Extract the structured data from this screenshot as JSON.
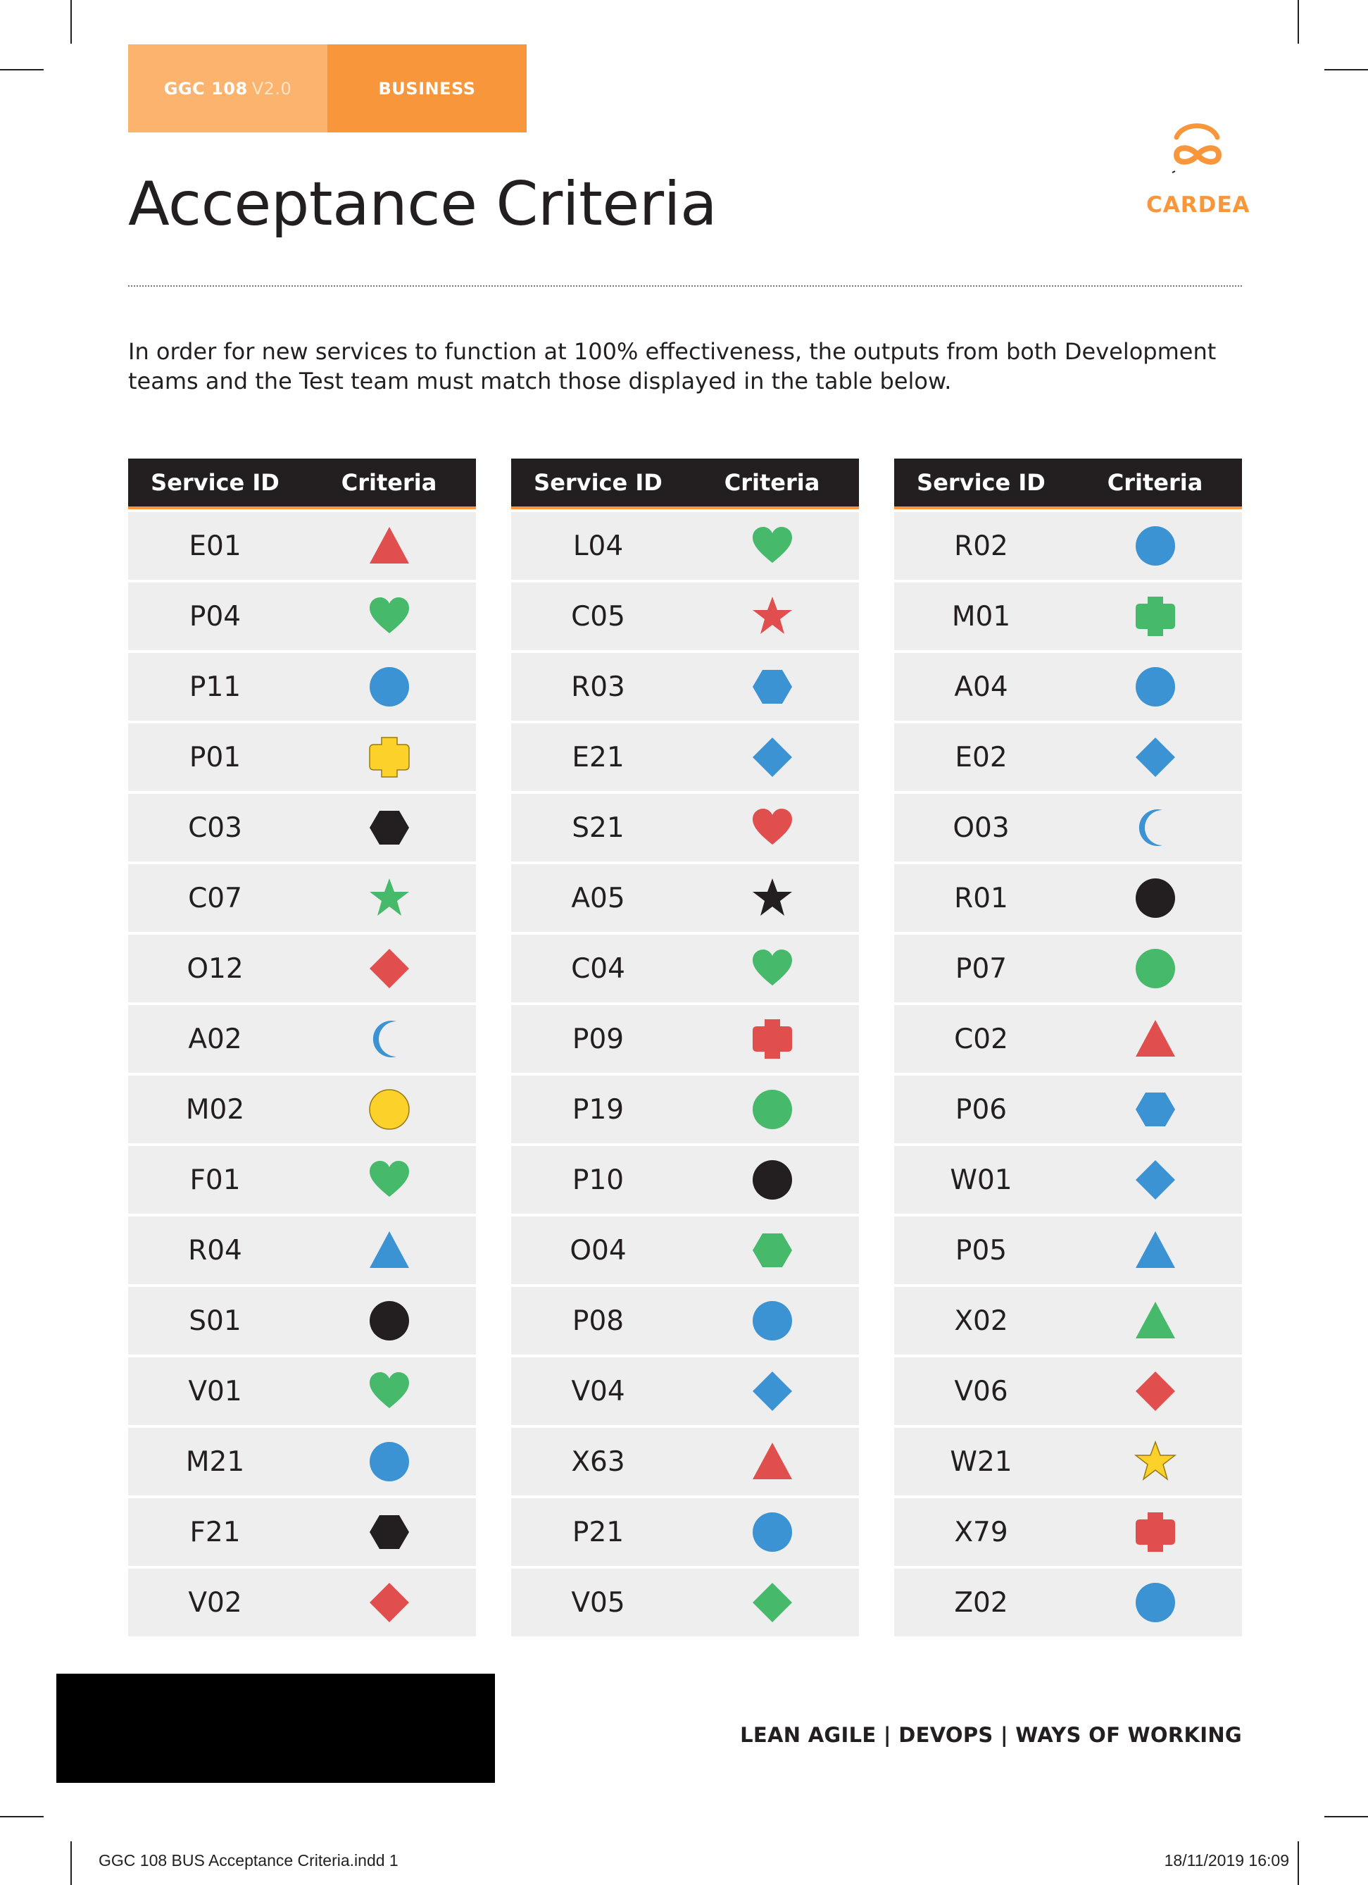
{
  "header": {
    "doc_code": "GGC 108",
    "doc_version": "V2.0",
    "category": "BUSINESS",
    "title": "Acceptance Criteria"
  },
  "logo": {
    "text": "CARDEA",
    "color": "#f7963a"
  },
  "intro": "In order for new services to function at 100% effectiveness, the outputs from both Development teams and the Test team must match those displayed in the table below.",
  "table": {
    "col_id": "Service ID",
    "col_criteria": "Criteria",
    "columns": [
      [
        {
          "id": "E01",
          "shape": "triangle",
          "color": "red"
        },
        {
          "id": "P04",
          "shape": "heart",
          "color": "green"
        },
        {
          "id": "P11",
          "shape": "circle",
          "color": "blue"
        },
        {
          "id": "P01",
          "shape": "cross",
          "color": "yellow"
        },
        {
          "id": "C03",
          "shape": "hexagon",
          "color": "black"
        },
        {
          "id": "C07",
          "shape": "star",
          "color": "green"
        },
        {
          "id": "O12",
          "shape": "diamond",
          "color": "red"
        },
        {
          "id": "A02",
          "shape": "moon",
          "color": "blue"
        },
        {
          "id": "M02",
          "shape": "circle",
          "color": "yellow"
        },
        {
          "id": "F01",
          "shape": "heart",
          "color": "green"
        },
        {
          "id": "R04",
          "shape": "triangle",
          "color": "blue"
        },
        {
          "id": "S01",
          "shape": "circle",
          "color": "black"
        },
        {
          "id": "V01",
          "shape": "heart",
          "color": "green"
        },
        {
          "id": "M21",
          "shape": "circle",
          "color": "blue"
        },
        {
          "id": "F21",
          "shape": "hexagon",
          "color": "black"
        },
        {
          "id": "V02",
          "shape": "diamond",
          "color": "red"
        }
      ],
      [
        {
          "id": "L04",
          "shape": "heart",
          "color": "green"
        },
        {
          "id": "C05",
          "shape": "star",
          "color": "red"
        },
        {
          "id": "R03",
          "shape": "hexagon",
          "color": "blue"
        },
        {
          "id": "E21",
          "shape": "diamond",
          "color": "blue"
        },
        {
          "id": "S21",
          "shape": "heart",
          "color": "red"
        },
        {
          "id": "A05",
          "shape": "star",
          "color": "black"
        },
        {
          "id": "C04",
          "shape": "heart",
          "color": "green"
        },
        {
          "id": "P09",
          "shape": "cross",
          "color": "red"
        },
        {
          "id": "P19",
          "shape": "circle",
          "color": "green"
        },
        {
          "id": "P10",
          "shape": "circle",
          "color": "black"
        },
        {
          "id": "O04",
          "shape": "hexagon",
          "color": "green"
        },
        {
          "id": "P08",
          "shape": "circle",
          "color": "blue"
        },
        {
          "id": "V04",
          "shape": "diamond",
          "color": "blue"
        },
        {
          "id": "X63",
          "shape": "triangle",
          "color": "red"
        },
        {
          "id": "P21",
          "shape": "circle",
          "color": "blue"
        },
        {
          "id": "V05",
          "shape": "diamond",
          "color": "green"
        }
      ],
      [
        {
          "id": "R02",
          "shape": "circle",
          "color": "blue"
        },
        {
          "id": "M01",
          "shape": "cross",
          "color": "green"
        },
        {
          "id": "A04",
          "shape": "circle",
          "color": "blue"
        },
        {
          "id": "E02",
          "shape": "diamond",
          "color": "blue"
        },
        {
          "id": "O03",
          "shape": "moon",
          "color": "blue"
        },
        {
          "id": "R01",
          "shape": "circle",
          "color": "black"
        },
        {
          "id": "P07",
          "shape": "circle",
          "color": "green"
        },
        {
          "id": "C02",
          "shape": "triangle",
          "color": "red"
        },
        {
          "id": "P06",
          "shape": "hexagon",
          "color": "blue"
        },
        {
          "id": "W01",
          "shape": "diamond",
          "color": "blue"
        },
        {
          "id": "P05",
          "shape": "triangle",
          "color": "blue"
        },
        {
          "id": "X02",
          "shape": "triangle",
          "color": "green"
        },
        {
          "id": "V06",
          "shape": "diamond",
          "color": "red"
        },
        {
          "id": "W21",
          "shape": "star",
          "color": "yellow"
        },
        {
          "id": "X79",
          "shape": "cross",
          "color": "red"
        },
        {
          "id": "Z02",
          "shape": "circle",
          "color": "blue"
        }
      ]
    ]
  },
  "palette": {
    "red": "#e04e4e",
    "green": "#46b96a",
    "blue": "#3c93d4",
    "yellow": "#fcd12a",
    "black": "#231f20",
    "orange": "#f7963a",
    "orange_light": "#fbb36e"
  },
  "footer": {
    "tagline": "LEAN AGILE | DEVOPS | WAYS OF WORKING",
    "slug_left": "GGC 108 BUS Acceptance Criteria.indd   1",
    "slug_right": "18/11/2019   16:09"
  }
}
